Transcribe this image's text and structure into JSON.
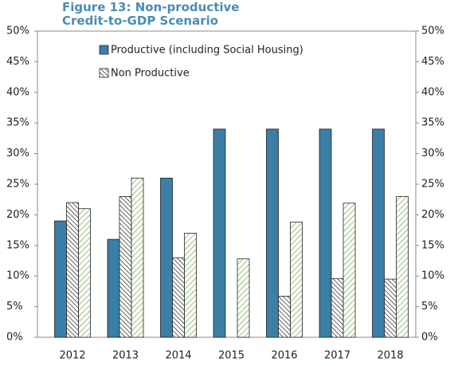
{
  "chart_data": {
    "type": "bar",
    "title": "Figure 13: Non-productive Credit-to-GDP Scenario",
    "categories": [
      "2012",
      "2013",
      "2014",
      "2015",
      "2016",
      "2017",
      "2018"
    ],
    "series": [
      {
        "name": "Productive (including Social Housing)",
        "color": "#3b7ea6",
        "values": [
          19,
          16,
          26,
          34,
          34,
          34,
          34
        ]
      },
      {
        "name": "Non Productive",
        "color": "#222222",
        "values": [
          22,
          23,
          13,
          0,
          6.7,
          9.6,
          9.5
        ]
      },
      {
        "color": "#7fb05a",
        "values": [
          21,
          26,
          17,
          12.8,
          18.8,
          21.9,
          23
        ]
      }
    ],
    "ylim": [
      0,
      50
    ],
    "yticks": [
      {
        "value": 0,
        "label": "0%"
      },
      {
        "value": 5,
        "label": "5%"
      },
      {
        "value": 10,
        "label": "10%"
      },
      {
        "value": 15,
        "label": "15%"
      },
      {
        "value": 20,
        "label": "20%"
      },
      {
        "value": 25,
        "label": "25%"
      },
      {
        "value": 30,
        "label": "30%"
      },
      {
        "value": 35,
        "label": "35%"
      },
      {
        "value": 40,
        "label": "40%"
      },
      {
        "value": 45,
        "label": "45%"
      },
      {
        "value": 50,
        "label": "50%"
      }
    ],
    "y2lim": [
      0,
      50
    ],
    "y2ticks": [
      {
        "value": 0,
        "label": "0%"
      },
      {
        "value": 5,
        "label": "5%"
      },
      {
        "value": 10,
        "label": "10%"
      },
      {
        "value": 15,
        "label": "15%"
      },
      {
        "value": 20,
        "label": "20%"
      },
      {
        "value": 25,
        "label": "25%"
      },
      {
        "value": 30,
        "label": "30%"
      },
      {
        "value": 35,
        "label": "35%"
      },
      {
        "value": 40,
        "label": "40%"
      },
      {
        "value": 45,
        "label": "45%"
      },
      {
        "value": 50,
        "label": "50%"
      }
    ],
    "grid": false
  }
}
